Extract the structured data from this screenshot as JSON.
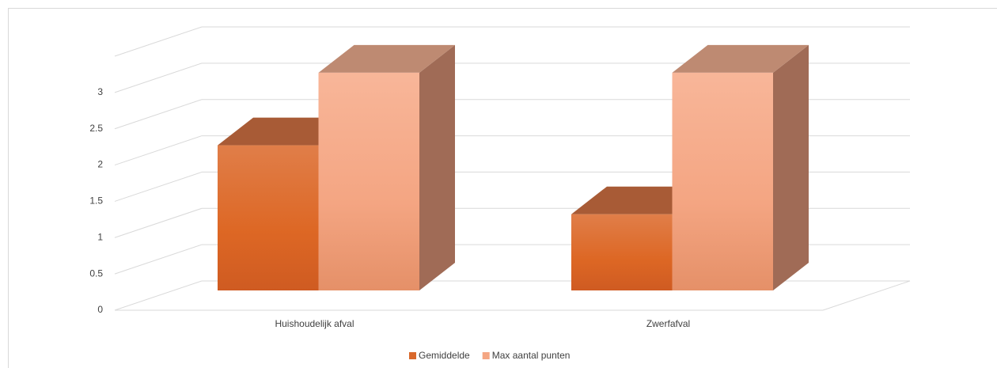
{
  "chart_data": {
    "type": "bar3d",
    "categories": [
      "Huishoudelijk afval",
      "Zwerfafval"
    ],
    "series": [
      {
        "name": "Gemiddelde",
        "color": "#d9682b",
        "values": [
          2,
          1.05
        ]
      },
      {
        "name": "Max aantal punten",
        "color": "#f4a683",
        "values": [
          3,
          3
        ]
      }
    ],
    "ylim": [
      0,
      3.5
    ],
    "yticks": [
      0,
      0.5,
      1,
      1.5,
      2,
      2.5,
      3
    ],
    "grid": true,
    "legend": "bottom"
  }
}
